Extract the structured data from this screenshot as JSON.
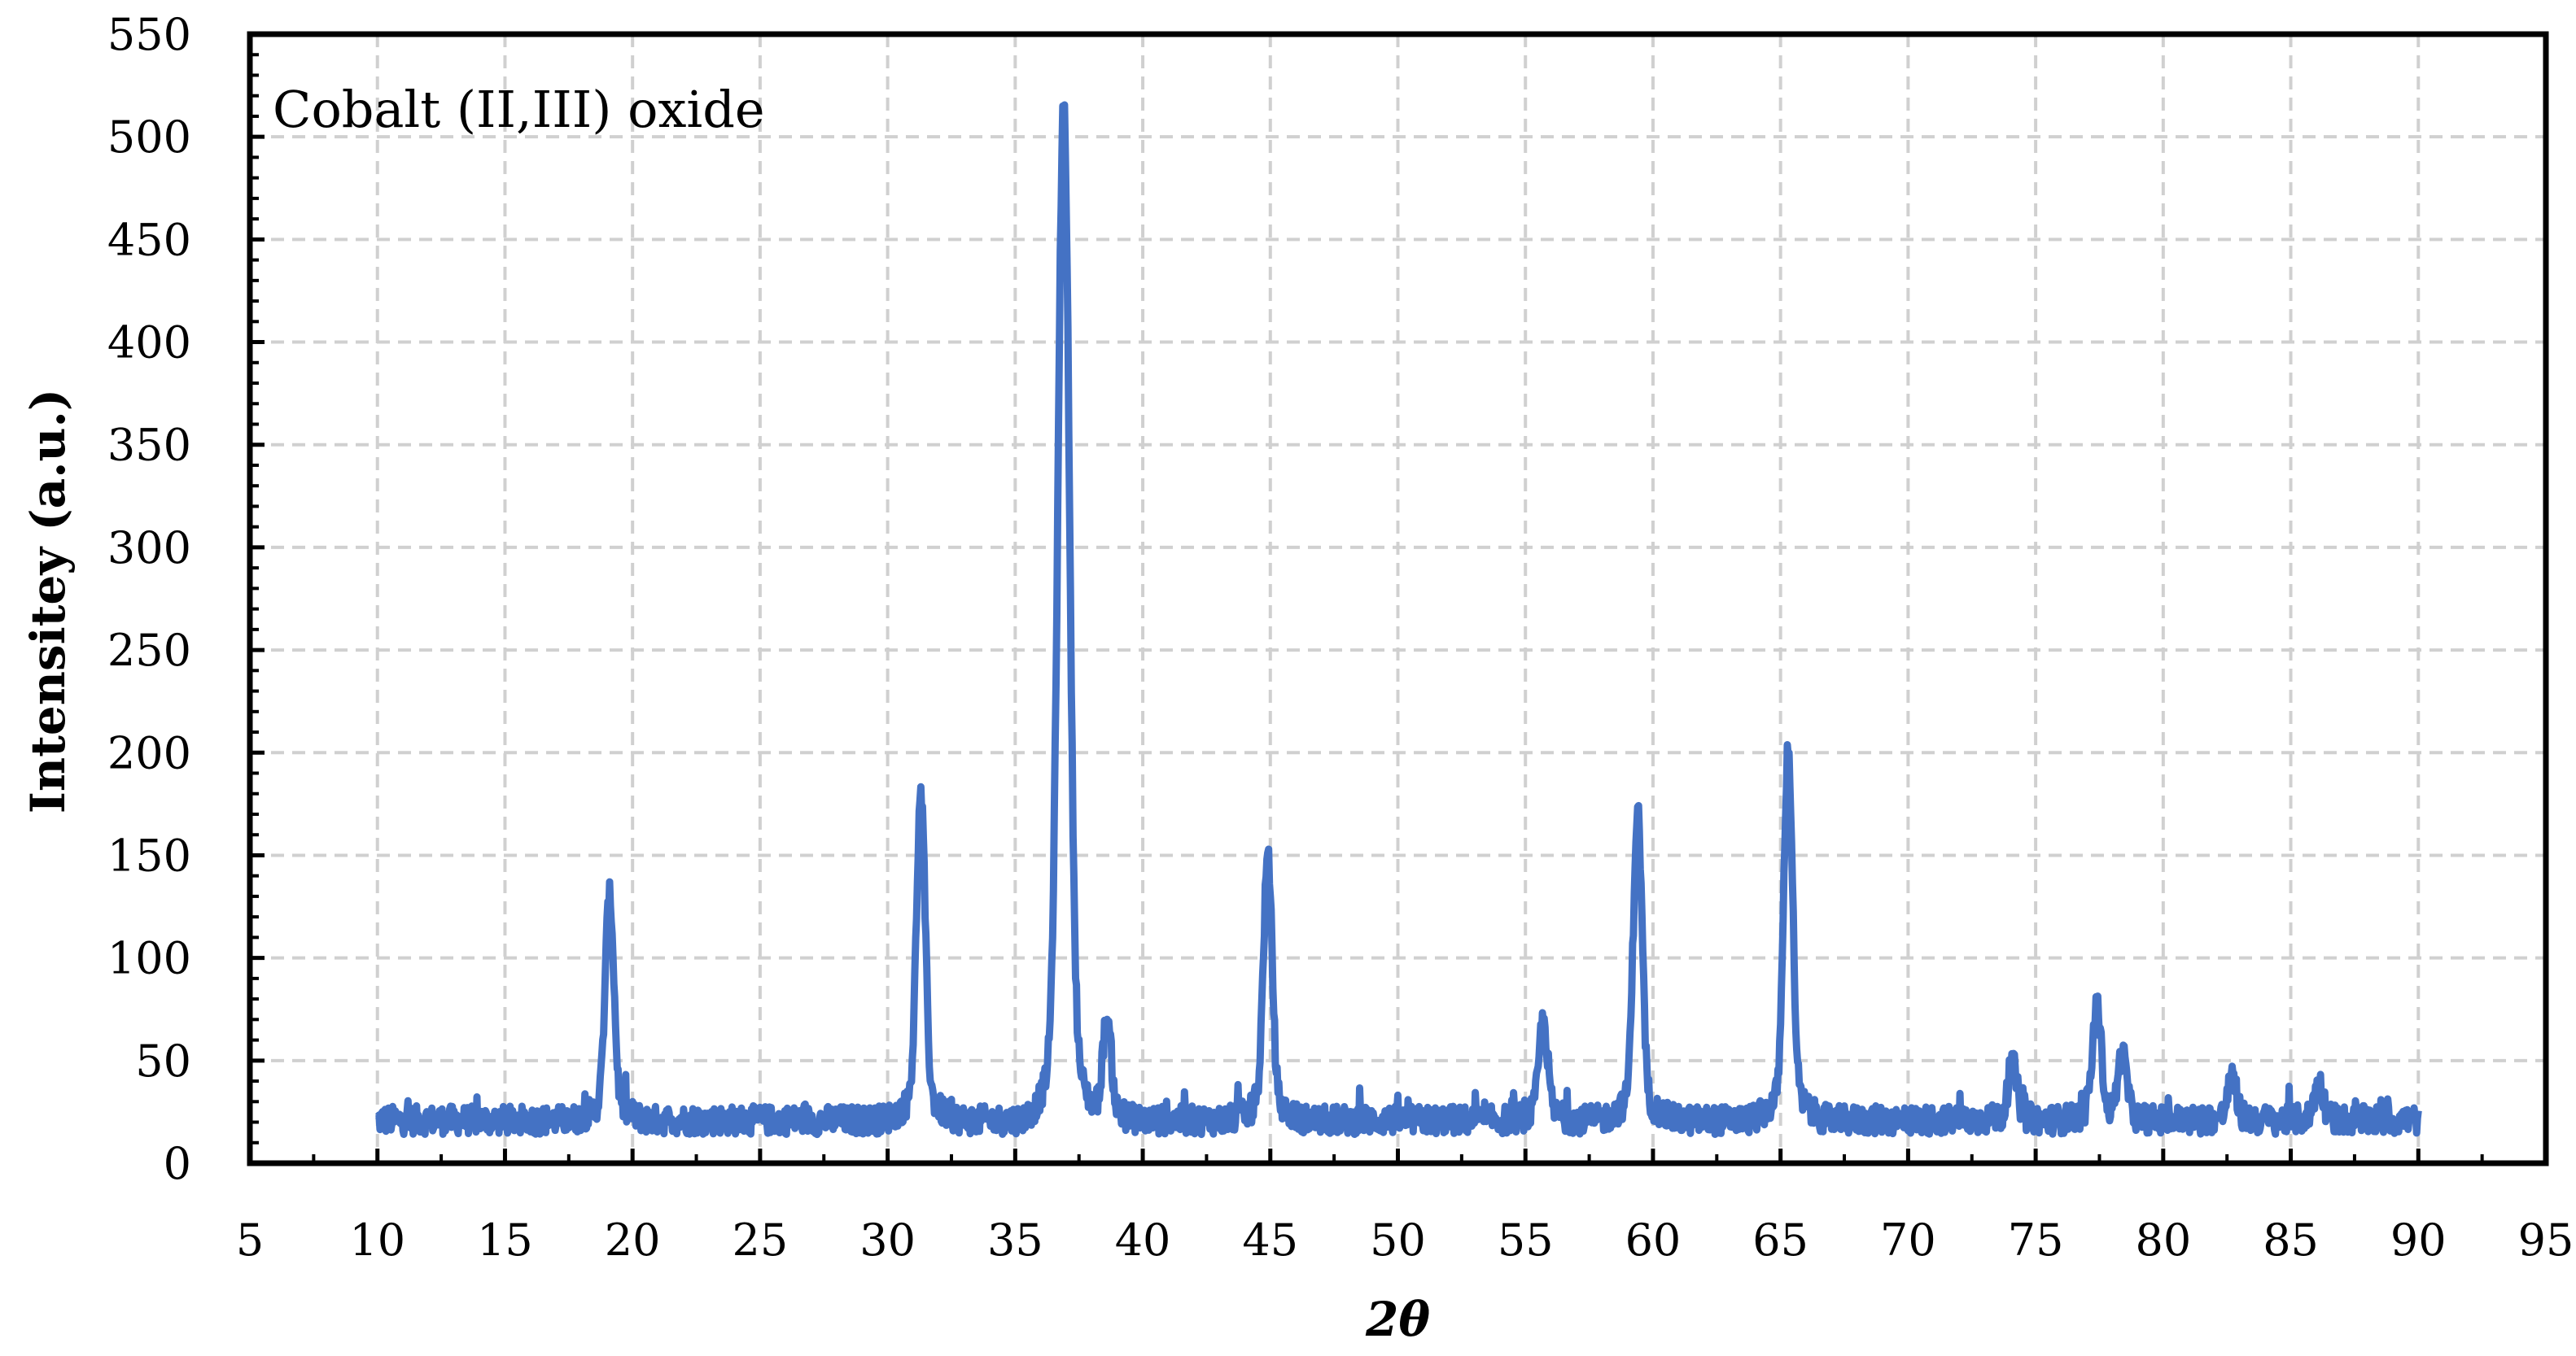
{
  "chart_data": {
    "type": "line",
    "annotation": "Cobalt (II,III) oxide",
    "xlabel": "2θ",
    "ylabel": "Intensitey (a.u.)",
    "xlim": [
      5,
      95
    ],
    "ylim": [
      0,
      550
    ],
    "xticks": [
      5,
      10,
      15,
      20,
      25,
      30,
      35,
      40,
      45,
      50,
      55,
      60,
      65,
      70,
      75,
      80,
      85,
      90,
      95
    ],
    "yticks": [
      0,
      50,
      100,
      150,
      200,
      250,
      300,
      350,
      400,
      450,
      500,
      550
    ],
    "grid": true,
    "legend": "none",
    "line_color": "#4472C4",
    "series": [
      {
        "x_range": [
          10,
          90
        ],
        "baseline": 21,
        "noise_amplitude": 7,
        "peaks": [
          {
            "x": 19.1,
            "y": 122
          },
          {
            "x": 31.3,
            "y": 167
          },
          {
            "x": 36.9,
            "y": 480
          },
          {
            "x": 38.6,
            "y": 66
          },
          {
            "x": 44.9,
            "y": 139
          },
          {
            "x": 55.7,
            "y": 66
          },
          {
            "x": 59.4,
            "y": 160
          },
          {
            "x": 65.3,
            "y": 188
          },
          {
            "x": 74.1,
            "y": 46
          },
          {
            "x": 77.4,
            "y": 72
          },
          {
            "x": 78.4,
            "y": 50
          },
          {
            "x": 82.7,
            "y": 40
          },
          {
            "x": 86.1,
            "y": 38
          }
        ]
      }
    ]
  }
}
